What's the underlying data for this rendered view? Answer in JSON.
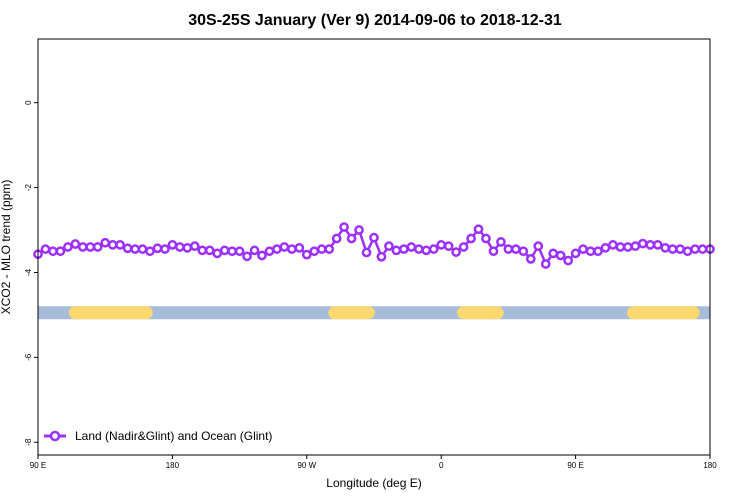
{
  "chart_data": {
    "type": "line",
    "title": "30S-25S January (Ver 9)   2014-09-06 to 2018-12-31",
    "xlabel": "Longitude (deg E)",
    "ylabel": "XCO2 - MLO trend (ppm)",
    "xlim": [
      90,
      450
    ],
    "ylim": [
      -8.3,
      1.5
    ],
    "x_ticks": [
      {
        "value": 90,
        "label": "90 E"
      },
      {
        "value": 162,
        "label": "180"
      },
      {
        "value": 234,
        "label": "90 W"
      },
      {
        "value": 306,
        "label": "0"
      },
      {
        "value": 378,
        "label": "90 E"
      },
      {
        "value": 450,
        "label": "180"
      }
    ],
    "y_ticks": [
      {
        "value": 0,
        "label": "0"
      },
      {
        "value": -2,
        "label": "-2"
      },
      {
        "value": -4,
        "label": "-4"
      },
      {
        "value": -6,
        "label": "-6"
      },
      {
        "value": -8,
        "label": "-8"
      }
    ],
    "grid": false,
    "legend": {
      "position": "bottom-left",
      "entries": [
        "Land (Nadir&Glint) and Ocean (Glint)"
      ]
    },
    "series": [
      {
        "name": "Land (Nadir&Glint) and Ocean (Glint)",
        "color": "#9b30ff",
        "x": [
          90,
          94,
          98,
          102,
          106,
          110,
          114,
          118,
          122,
          126,
          130,
          134,
          138,
          142,
          146,
          150,
          154,
          158,
          162,
          166,
          170,
          174,
          178,
          182,
          186,
          190,
          194,
          198,
          202,
          206,
          210,
          214,
          218,
          222,
          226,
          230,
          234,
          238,
          242,
          246,
          250,
          254,
          258,
          262,
          266,
          270,
          274,
          278,
          282,
          286,
          290,
          294,
          298,
          302,
          306,
          310,
          314,
          318,
          322,
          326,
          330,
          334,
          338,
          342,
          346,
          350,
          354,
          358,
          362,
          366,
          370,
          374,
          378,
          382,
          386,
          390,
          394,
          398,
          402,
          406,
          410,
          414,
          418,
          422,
          426,
          430,
          434,
          438,
          442,
          446,
          450
        ],
        "y": [
          -3.57,
          -3.45,
          -3.5,
          -3.5,
          -3.4,
          -3.33,
          -3.4,
          -3.4,
          -3.4,
          -3.3,
          -3.35,
          -3.35,
          -3.43,
          -3.45,
          -3.45,
          -3.5,
          -3.43,
          -3.45,
          -3.35,
          -3.4,
          -3.42,
          -3.38,
          -3.48,
          -3.48,
          -3.55,
          -3.48,
          -3.5,
          -3.5,
          -3.62,
          -3.48,
          -3.6,
          -3.5,
          -3.45,
          -3.4,
          -3.45,
          -3.42,
          -3.58,
          -3.5,
          -3.45,
          -3.45,
          -3.2,
          -2.93,
          -3.2,
          -3.0,
          -3.53,
          -3.18,
          -3.63,
          -3.38,
          -3.48,
          -3.45,
          -3.4,
          -3.45,
          -3.48,
          -3.45,
          -3.35,
          -3.38,
          -3.52,
          -3.4,
          -3.2,
          -2.98,
          -3.2,
          -3.5,
          -3.28,
          -3.45,
          -3.45,
          -3.5,
          -3.68,
          -3.38,
          -3.8,
          -3.55,
          -3.6,
          -3.72,
          -3.55,
          -3.45,
          -3.5,
          -3.5,
          -3.42,
          -3.35,
          -3.4,
          -3.4,
          -3.38,
          -3.32,
          -3.35,
          -3.35,
          -3.42,
          -3.45,
          -3.45,
          -3.5,
          -3.45,
          -3.45,
          -3.45
        ]
      }
    ],
    "surface_bar": {
      "y": -4.95,
      "ocean_color": "#a7bcdb",
      "land_color": "#fcd86f",
      "land_segments": [
        [
          110,
          148
        ],
        [
          249,
          267
        ],
        [
          318,
          332
        ],
        [
          335,
          336
        ],
        [
          409,
          441
        ]
      ]
    }
  }
}
